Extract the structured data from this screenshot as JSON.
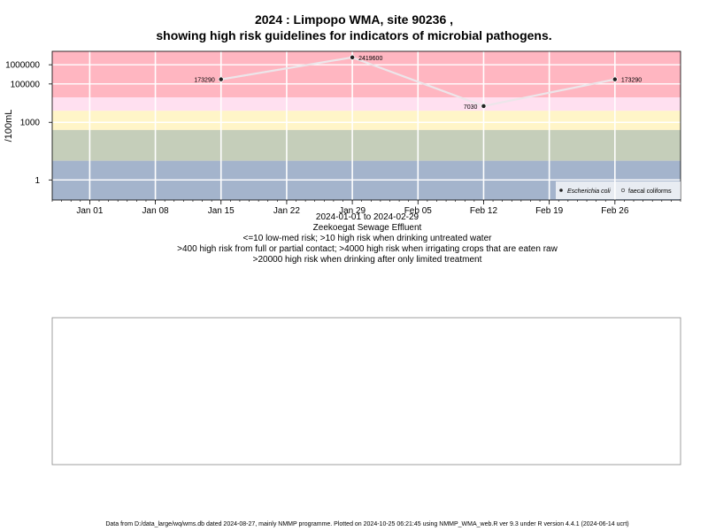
{
  "title_line1": "2024 : Limpopo WMA, site 90236 ,",
  "title_line2": "showing high risk guidelines for indicators of microbial pathogens.",
  "captions": [
    "2024-01-01 to 2024-02-29",
    "Zeekoegat Sewage Effluent",
    "<=10 low-med risk; >10 high risk when drinking untreated water",
    ">400 high risk from full or partial contact; >4000 high risk when irrigating crops that are eaten raw",
    ">20000 high risk when drinking after only limited treatment"
  ],
  "footer": "Data from D:/data_large/wq/wms.db dated 2024-08-27, mainly NMMP programme. Plotted on 2024-10-25 06:21:45 using NMMP_WMA_web.R ver 9.3 under R version 4.4.1 (2024-06-14 ucrt)",
  "chart_data": {
    "type": "line",
    "title": "2024 : Limpopo WMA, site 90236 , showing high risk guidelines for indicators of microbial pathogens.",
    "ylabel": "/100mL",
    "y_scale": "log",
    "ylim": [
      0.09,
      5000000
    ],
    "xlim": [
      "2023-12-28",
      "2024-03-04"
    ],
    "x_ticks": [
      {
        "date": "2024-01-01",
        "label": "Jan 01"
      },
      {
        "date": "2024-01-08",
        "label": "Jan 08"
      },
      {
        "date": "2024-01-15",
        "label": "Jan 15"
      },
      {
        "date": "2024-01-22",
        "label": "Jan 22"
      },
      {
        "date": "2024-01-29",
        "label": "Jan 29"
      },
      {
        "date": "2024-02-05",
        "label": "Feb 05"
      },
      {
        "date": "2024-02-12",
        "label": "Feb 12"
      },
      {
        "date": "2024-02-19",
        "label": "Feb 19"
      },
      {
        "date": "2024-02-26",
        "label": "Feb 26"
      }
    ],
    "y_ticks": [
      {
        "value": 1,
        "label": "1"
      },
      {
        "value": 1000,
        "label": "1000"
      },
      {
        "value": 100000,
        "label": "100000"
      },
      {
        "value": 1000000,
        "label": "1000000"
      }
    ],
    "risk_bands": [
      {
        "from": 20000,
        "to": 5000000,
        "color": "#ffb6c1"
      },
      {
        "from": 4000,
        "to": 20000,
        "color": "#ffe0f0"
      },
      {
        "from": 400,
        "to": 4000,
        "color": "#fff5c8"
      },
      {
        "from": 10,
        "to": 400,
        "color": "#c5ceba"
      },
      {
        "from": 0.09,
        "to": 10,
        "color": "#a4b4cc"
      }
    ],
    "series": [
      {
        "name": "Escherichia coli",
        "points": [
          {
            "x": "2024-01-15",
            "y": 173290,
            "label": "173290"
          },
          {
            "x": "2024-01-29",
            "y": 2419600,
            "label": "2419600"
          },
          {
            "x": "2024-02-12",
            "y": 7030,
            "label": "7030"
          },
          {
            "x": "2024-02-26",
            "y": 173290,
            "label": "173290"
          }
        ]
      }
    ],
    "legend": {
      "position": "bottom-right",
      "entries": [
        "Escherichia coli",
        "faecal coliforms"
      ]
    },
    "grid": true
  }
}
